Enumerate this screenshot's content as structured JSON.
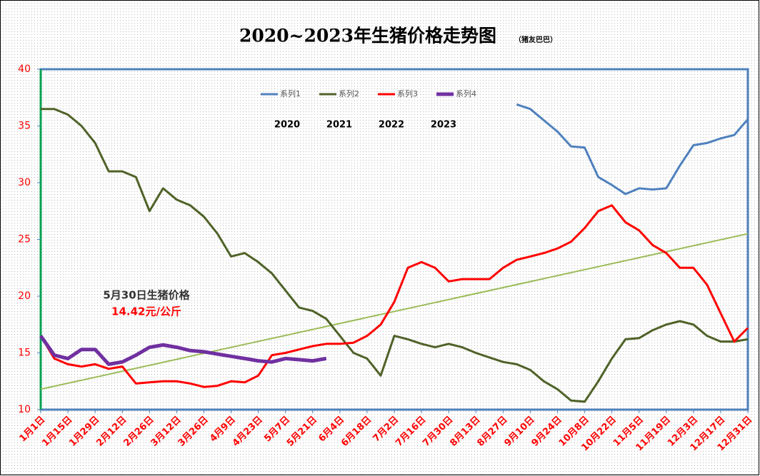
{
  "chart_data": {
    "type": "line",
    "title": "2020~2023年生猪价格走势图",
    "subtitle": "（猪友巴巴）",
    "categories": [
      "1月1日",
      null,
      "1月15日",
      null,
      "1月29日",
      null,
      "2月12日",
      null,
      "2月26日",
      null,
      "3月12日",
      null,
      "3月26日",
      null,
      "4月9日",
      null,
      "4月23日",
      null,
      "5月7日",
      null,
      "5月21日",
      null,
      "6月4日",
      null,
      "6月18日",
      null,
      "7月2日",
      null,
      "7月16日",
      null,
      "7月30日",
      null,
      "8月13日",
      null,
      "8月27日",
      null,
      "9月10日",
      null,
      "9月24日",
      null,
      "10月8日",
      null,
      "10月22日",
      null,
      "11月5日",
      null,
      "11月19日",
      null,
      "12月3日",
      null,
      "12月17日",
      null,
      "12月31日"
    ],
    "series": [
      {
        "name": "系列1",
        "color": "#4f81bd",
        "values": [
          null,
          null,
          null,
          null,
          null,
          null,
          null,
          null,
          null,
          null,
          null,
          null,
          null,
          null,
          null,
          null,
          null,
          null,
          null,
          null,
          null,
          null,
          null,
          null,
          null,
          null,
          null,
          null,
          null,
          null,
          null,
          null,
          null,
          null,
          null,
          36.9,
          36.5,
          35.5,
          34.5,
          33.2,
          33.1,
          30.5,
          29.8,
          29.0,
          29.5,
          29.4,
          29.5,
          31.5,
          33.3,
          33.5,
          33.9,
          34.2,
          35.6
        ]
      },
      {
        "name": "系列2",
        "color": "#4f6228",
        "values": [
          36.5,
          36.5,
          36.0,
          35.0,
          33.5,
          31.0,
          31.0,
          30.5,
          27.5,
          29.5,
          28.5,
          28.0,
          27.0,
          25.5,
          23.5,
          23.8,
          23.0,
          22.0,
          20.5,
          19.0,
          18.7,
          18.0,
          16.5,
          15.0,
          14.5,
          13.0,
          16.5,
          16.2,
          15.8,
          15.5,
          15.8,
          15.5,
          15.0,
          14.6,
          14.2,
          14.0,
          13.5,
          12.5,
          11.8,
          10.8,
          10.7,
          12.5,
          14.5,
          16.2,
          16.3,
          17.0,
          17.5,
          17.8,
          17.5,
          16.5,
          16.0,
          16.0,
          16.2
        ]
      },
      {
        "name": "系列3",
        "color": "#ff0000",
        "values": [
          16.5,
          14.5,
          14.0,
          13.8,
          14.0,
          13.6,
          13.8,
          12.3,
          12.4,
          12.5,
          12.5,
          12.3,
          12.0,
          12.1,
          12.5,
          12.4,
          13.0,
          14.8,
          15.0,
          15.3,
          15.6,
          15.8,
          15.8,
          15.9,
          16.5,
          17.5,
          19.5,
          22.5,
          23.0,
          22.5,
          21.3,
          21.5,
          21.5,
          21.5,
          22.5,
          23.2,
          23.5,
          23.8,
          24.2,
          24.8,
          26.0,
          27.5,
          28.0,
          26.5,
          25.8,
          24.5,
          23.8,
          22.5,
          22.5,
          21.0,
          18.5,
          16.0,
          17.2
        ]
      },
      {
        "name": "系列4",
        "color": "#7030a0",
        "values": [
          16.5,
          14.8,
          14.5,
          15.3,
          15.3,
          14.0,
          14.2,
          14.8,
          15.5,
          15.7,
          15.5,
          15.2,
          15.1,
          14.9,
          14.7,
          14.5,
          14.3,
          14.2,
          14.5,
          14.4,
          14.3,
          14.5,
          null,
          null,
          null,
          null,
          null,
          null,
          null,
          null,
          null,
          null,
          null,
          null,
          null,
          null,
          null,
          null,
          null,
          null,
          null,
          null,
          null,
          null,
          null,
          null,
          null,
          null,
          null,
          null,
          null,
          null,
          null
        ]
      }
    ],
    "trendline": {
      "color": "#9bbb59",
      "values": [
        11.8,
        25.5
      ]
    },
    "year_labels": [
      "2020",
      "2021",
      "2022",
      "2023"
    ],
    "annotations": [
      "5月30日生猪价格",
      "14.42元/公斤"
    ],
    "ylim": [
      10,
      40
    ],
    "yticks": [
      10,
      15,
      20,
      25,
      30,
      35,
      40
    ],
    "grid": false
  }
}
